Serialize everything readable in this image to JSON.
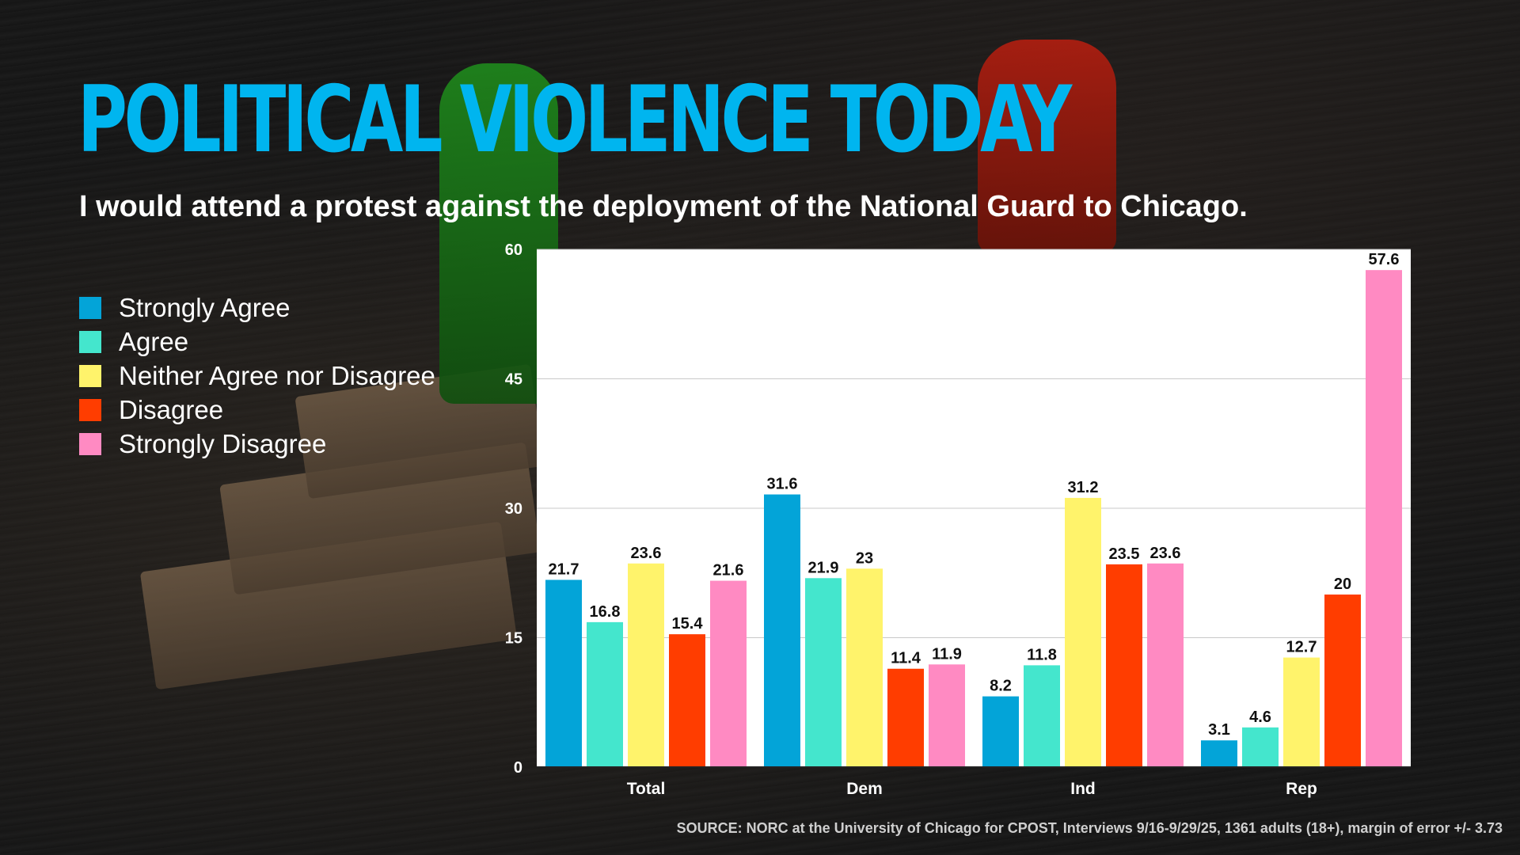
{
  "title": "POLITICAL VIOLENCE TODAY",
  "subtitle": "I would attend a protest against the deployment of the National Guard to Chicago.",
  "source": "SOURCE: NORC at the University of Chicago for CPOST, Interviews 9/16-9/29/25, 1361 adults (18+), margin of error +/- 3.73",
  "legend": [
    {
      "label": "Strongly Agree",
      "color": "#03a4d8"
    },
    {
      "label": "Agree",
      "color": "#44e6cd"
    },
    {
      "label": "Neither Agree nor Disagree",
      "color": "#fff36b"
    },
    {
      "label": "Disagree",
      "color": "#ff3d00"
    },
    {
      "label": "Strongly Disagree",
      "color": "#ff8ac2"
    }
  ],
  "chart_data": {
    "type": "bar",
    "title": "",
    "xlabel": "",
    "ylabel": "",
    "ylim": [
      0,
      60
    ],
    "yticks": [
      0,
      15,
      30,
      45,
      60
    ],
    "grid": true,
    "categories": [
      "Total",
      "Dem",
      "Ind",
      "Rep"
    ],
    "series": [
      {
        "name": "Strongly Agree",
        "color": "#03a4d8",
        "values": [
          21.7,
          31.6,
          8.2,
          3.1
        ]
      },
      {
        "name": "Agree",
        "color": "#44e6cd",
        "values": [
          16.8,
          21.9,
          11.8,
          4.6
        ]
      },
      {
        "name": "Neither Agree nor Disagree",
        "color": "#fff36b",
        "values": [
          23.6,
          23,
          31.2,
          12.7
        ]
      },
      {
        "name": "Disagree",
        "color": "#ff3d00",
        "values": [
          15.4,
          11.4,
          23.5,
          20
        ]
      },
      {
        "name": "Strongly Disagree",
        "color": "#ff8ac2",
        "values": [
          21.6,
          11.9,
          23.6,
          57.6
        ]
      }
    ]
  }
}
